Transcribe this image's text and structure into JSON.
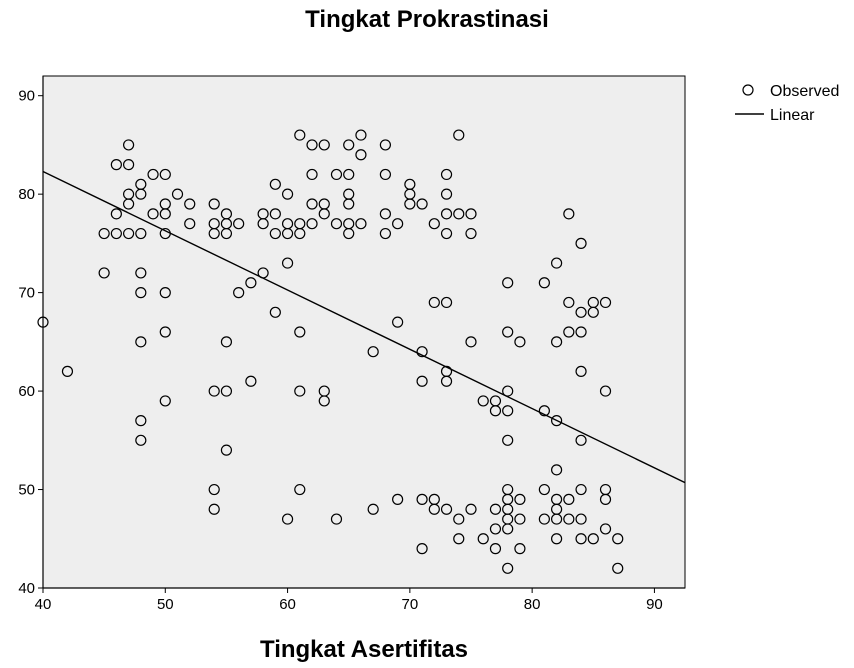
{
  "chart_data": {
    "type": "scatter",
    "title": "Tingkat Prokrastinasi",
    "xlabel": "Tingkat Asertifitas",
    "ylabel": "",
    "xlim": [
      40,
      92.5
    ],
    "ylim": [
      40,
      92
    ],
    "xticks": [
      40,
      50,
      60,
      70,
      80,
      90
    ],
    "yticks": [
      40,
      50,
      60,
      70,
      80,
      90
    ],
    "grid": false,
    "plot_background": "#eeeeee",
    "legend_position": "top-right",
    "legend": [
      "Observed",
      "Linear"
    ],
    "fit_line": {
      "name": "Linear",
      "x": [
        40,
        92.5
      ],
      "y": [
        82.3,
        50.7
      ]
    },
    "series": [
      {
        "name": "Observed",
        "points": [
          [
            40,
            67
          ],
          [
            42,
            62
          ],
          [
            45,
            76
          ],
          [
            45,
            72
          ],
          [
            46,
            83
          ],
          [
            46,
            78
          ],
          [
            46,
            76
          ],
          [
            47,
            85
          ],
          [
            47,
            83
          ],
          [
            47,
            80
          ],
          [
            47,
            79
          ],
          [
            47,
            76
          ],
          [
            48,
            81
          ],
          [
            48,
            80
          ],
          [
            48,
            76
          ],
          [
            48,
            72
          ],
          [
            48,
            70
          ],
          [
            48,
            65
          ],
          [
            48,
            57
          ],
          [
            48,
            55
          ],
          [
            49,
            82
          ],
          [
            49,
            78
          ],
          [
            50,
            82
          ],
          [
            50,
            79
          ],
          [
            50,
            78
          ],
          [
            50,
            76
          ],
          [
            50,
            70
          ],
          [
            50,
            66
          ],
          [
            50,
            59
          ],
          [
            51,
            80
          ],
          [
            52,
            79
          ],
          [
            52,
            77
          ],
          [
            54,
            79
          ],
          [
            54,
            77
          ],
          [
            54,
            76
          ],
          [
            54,
            60
          ],
          [
            54,
            50
          ],
          [
            54,
            48
          ],
          [
            55,
            78
          ],
          [
            55,
            77
          ],
          [
            55,
            76
          ],
          [
            55,
            65
          ],
          [
            55,
            60
          ],
          [
            55,
            54
          ],
          [
            56,
            77
          ],
          [
            56,
            70
          ],
          [
            57,
            71
          ],
          [
            57,
            61
          ],
          [
            58,
            78
          ],
          [
            58,
            77
          ],
          [
            58,
            72
          ],
          [
            59,
            81
          ],
          [
            59,
            78
          ],
          [
            59,
            76
          ],
          [
            59,
            68
          ],
          [
            60,
            80
          ],
          [
            60,
            77
          ],
          [
            60,
            76
          ],
          [
            60,
            73
          ],
          [
            60,
            47
          ],
          [
            61,
            86
          ],
          [
            61,
            77
          ],
          [
            61,
            76
          ],
          [
            61,
            66
          ],
          [
            61,
            60
          ],
          [
            61,
            50
          ],
          [
            62,
            85
          ],
          [
            62,
            82
          ],
          [
            62,
            79
          ],
          [
            62,
            77
          ],
          [
            63,
            85
          ],
          [
            63,
            79
          ],
          [
            63,
            78
          ],
          [
            63,
            60
          ],
          [
            63,
            59
          ],
          [
            64,
            82
          ],
          [
            64,
            77
          ],
          [
            64,
            47
          ],
          [
            65,
            85
          ],
          [
            65,
            82
          ],
          [
            65,
            80
          ],
          [
            65,
            79
          ],
          [
            65,
            77
          ],
          [
            65,
            76
          ],
          [
            66,
            86
          ],
          [
            66,
            84
          ],
          [
            66,
            77
          ],
          [
            67,
            64
          ],
          [
            67,
            48
          ],
          [
            68,
            85
          ],
          [
            68,
            82
          ],
          [
            68,
            78
          ],
          [
            68,
            76
          ],
          [
            69,
            77
          ],
          [
            69,
            67
          ],
          [
            69,
            49
          ],
          [
            70,
            81
          ],
          [
            70,
            80
          ],
          [
            70,
            79
          ],
          [
            71,
            79
          ],
          [
            71,
            64
          ],
          [
            71,
            61
          ],
          [
            71,
            49
          ],
          [
            71,
            44
          ],
          [
            72,
            77
          ],
          [
            72,
            69
          ],
          [
            72,
            49
          ],
          [
            72,
            48
          ],
          [
            73,
            82
          ],
          [
            73,
            80
          ],
          [
            73,
            78
          ],
          [
            73,
            76
          ],
          [
            73,
            69
          ],
          [
            73,
            62
          ],
          [
            73,
            61
          ],
          [
            73,
            48
          ],
          [
            74,
            86
          ],
          [
            74,
            78
          ],
          [
            74,
            47
          ],
          [
            74,
            45
          ],
          [
            75,
            78
          ],
          [
            75,
            76
          ],
          [
            75,
            65
          ],
          [
            75,
            48
          ],
          [
            76,
            59
          ],
          [
            76,
            45
          ],
          [
            77,
            59
          ],
          [
            77,
            58
          ],
          [
            77,
            48
          ],
          [
            77,
            46
          ],
          [
            77,
            44
          ],
          [
            78,
            71
          ],
          [
            78,
            66
          ],
          [
            78,
            60
          ],
          [
            78,
            58
          ],
          [
            78,
            55
          ],
          [
            78,
            50
          ],
          [
            78,
            49
          ],
          [
            78,
            48
          ],
          [
            78,
            47
          ],
          [
            78,
            46
          ],
          [
            78,
            42
          ],
          [
            79,
            65
          ],
          [
            79,
            49
          ],
          [
            79,
            47
          ],
          [
            79,
            44
          ],
          [
            81,
            71
          ],
          [
            81,
            58
          ],
          [
            81,
            50
          ],
          [
            81,
            47
          ],
          [
            82,
            73
          ],
          [
            82,
            65
          ],
          [
            82,
            57
          ],
          [
            82,
            52
          ],
          [
            82,
            49
          ],
          [
            82,
            48
          ],
          [
            82,
            47
          ],
          [
            82,
            45
          ],
          [
            83,
            78
          ],
          [
            83,
            69
          ],
          [
            83,
            66
          ],
          [
            83,
            49
          ],
          [
            83,
            47
          ],
          [
            84,
            75
          ],
          [
            84,
            68
          ],
          [
            84,
            66
          ],
          [
            84,
            62
          ],
          [
            84,
            55
          ],
          [
            84,
            50
          ],
          [
            84,
            47
          ],
          [
            84,
            45
          ],
          [
            85,
            69
          ],
          [
            85,
            68
          ],
          [
            85,
            45
          ],
          [
            86,
            69
          ],
          [
            86,
            60
          ],
          [
            86,
            50
          ],
          [
            86,
            49
          ],
          [
            86,
            46
          ],
          [
            87,
            45
          ],
          [
            87,
            42
          ]
        ]
      }
    ]
  }
}
